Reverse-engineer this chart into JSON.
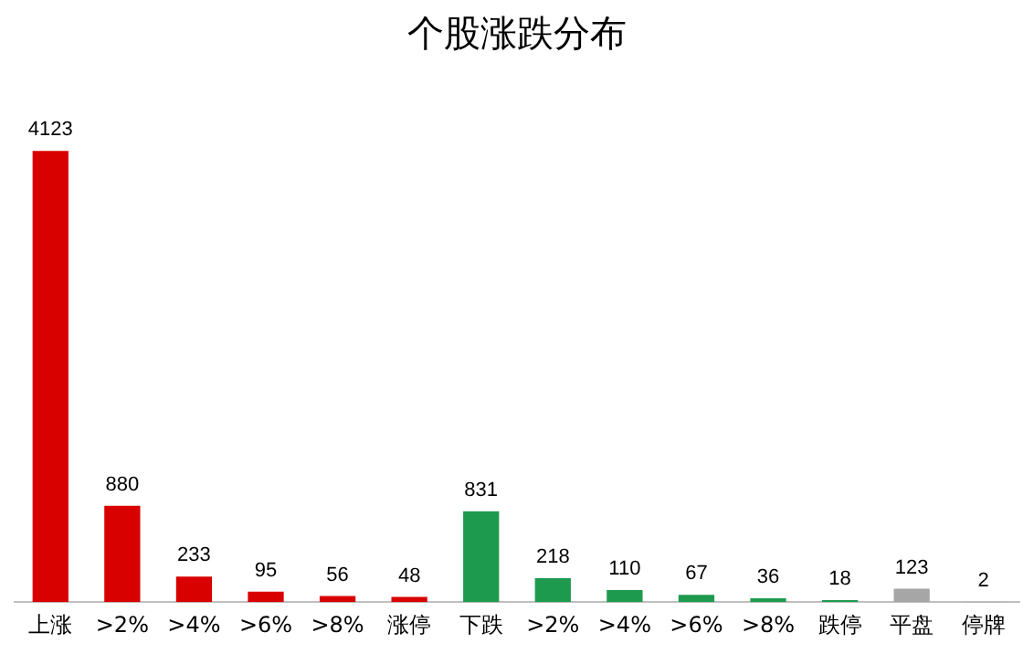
{
  "chart_data": {
    "type": "bar",
    "title": "个股涨跌分布",
    "categories": [
      "上涨",
      ">2%",
      ">4%",
      ">6%",
      ">8%",
      "涨停",
      "下跌",
      ">2%",
      ">4%",
      ">6%",
      ">8%",
      "跌停",
      "平盘",
      "停牌"
    ],
    "values": [
      4123,
      880,
      233,
      95,
      56,
      48,
      831,
      218,
      110,
      67,
      36,
      18,
      123,
      2
    ],
    "colors": [
      "#d90000",
      "#d90000",
      "#d90000",
      "#d90000",
      "#d90000",
      "#d90000",
      "#1e9a4f",
      "#1e9a4f",
      "#1e9a4f",
      "#1e9a4f",
      "#1e9a4f",
      "#1e9a4f",
      "#a6a6a6",
      "#595959"
    ],
    "data_labels": true,
    "grid": false,
    "legend": false
  }
}
